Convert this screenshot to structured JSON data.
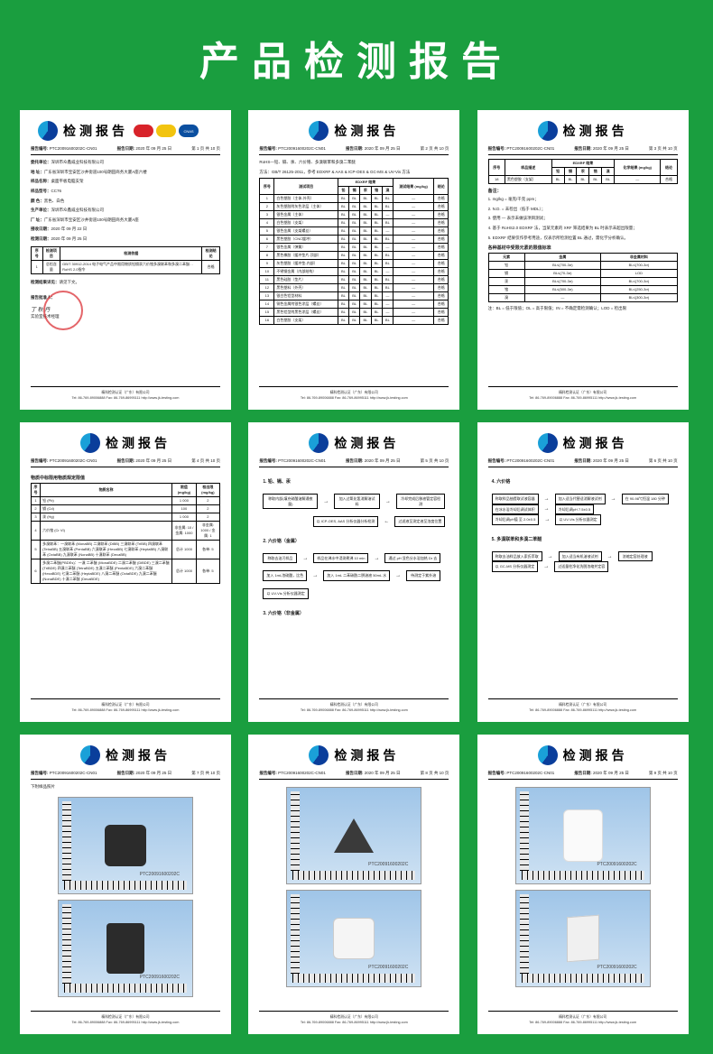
{
  "page_title": "产品检测报告",
  "report_title": "检测报告",
  "cnas_text": "CNAS",
  "report_no_label": "报告编号:",
  "report_no": "PTC20091600202C-CN01",
  "date_label": "报告日期:",
  "date": "2020 年 09 月 25 日",
  "pages": [
    "第 1 页  共 10 页",
    "第 2 页  共 10 页",
    "第 3 页  共 10 页",
    "第 4 页  共 10 页",
    "第 5 页  共 10 页",
    "第 6 页  共 10 页",
    "第 7 页  共 10 页",
    "第 8 页  共 10 页",
    "第 9 页  共 10 页"
  ],
  "footer_org": "精科检测认证（广东）有限公司",
  "footer_tel": "Tel: 86-769-89006888   Fax: 86-769-86995111   http://www.jk-testing.com",
  "card1": {
    "applicant_label": "委托单位：",
    "applicant": "深圳市众鑫威业科技有限公司",
    "addr_label": "地    址：",
    "addr": "广东省深圳市宝安区沙井街道100号朗田商务大厦A座六楼",
    "sample_label": "样品名称：",
    "sample": "桌面平板电脑支架",
    "model_label": "样品型号：",
    "model": "CC76",
    "color_label": "颜    色：",
    "color": "黑色、白色",
    "mfr_label": "生产单位：",
    "mfr": "深圳市众鑫威业科技有限公司",
    "mfr_addr_label": "厂    址：",
    "mfr_addr": "广东省深圳市宝安区沙井街道100号朗田商务大厦A座",
    "recv_label": "接收日期：",
    "recv": "2020 年 09 月 22 日",
    "test_label": "检测日期：",
    "test": "2020 年 09 月 25 日",
    "result_head": [
      "序号",
      "检测项目",
      "检测依据",
      "检测结论"
    ],
    "result_row": [
      "1",
      "总铅含量",
      "GB/T 30912-2014 电子电气产品中限用物质铅镉汞六价铬多溴联苯和多溴二苯醚…RoHS 2.0指令",
      "合格"
    ],
    "conclusion_label": "检测结果详见：",
    "conclusion": "请见下文。",
    "approve_label": "报告批准人：",
    "approve_title": "实验室技术经理"
  },
  "card2": {
    "desc1": "RoHS—铅、镉、汞、六价铬、多溴联苯和多溴二苯醚",
    "desc2": "方法：GB/T 26125-2011，参考 EDXRF & AAS & ICP-OES & GC-MS & UV-Vis 方法",
    "tbl_head": [
      "序号",
      "测试项目",
      "EDXRF 结果",
      "单位",
      "测试结果 (mg/kg)",
      "结论"
    ],
    "sub_head": [
      "铅",
      "镉",
      "汞",
      "铬",
      "溴"
    ],
    "rows": [
      [
        "1",
        "白色塑胶（主体-外壳）",
        "BL",
        "BL",
        "BL",
        "BL",
        "BL",
        "—",
        "合格"
      ],
      [
        "2",
        "灰色塑胶附灰色涂层（主体）",
        "BL",
        "BL",
        "BL",
        "BL",
        "BL",
        "—",
        "合格"
      ],
      [
        "3",
        "银色金属（主体）",
        "BL",
        "BL",
        "BL",
        "BL",
        "—",
        "—",
        "合格"
      ],
      [
        "4",
        "白色塑胶（支架）",
        "BL",
        "BL",
        "BL",
        "BL",
        "BL",
        "—",
        "合格"
      ],
      [
        "5",
        "银色金属（支架螺丝）",
        "BL",
        "BL",
        "BL",
        "BL",
        "—",
        "—",
        "合格"
      ],
      [
        "6",
        "黑色塑胶（CNC缓冲）",
        "BL",
        "BL",
        "BL",
        "BL",
        "BL",
        "—",
        "合格"
      ],
      [
        "7",
        "银色金属（弹簧）",
        "BL",
        "BL",
        "BL",
        "BL",
        "—",
        "—",
        "合格"
      ],
      [
        "8",
        "黑色橡胶（缓冲垫片-顶部）",
        "BL",
        "BL",
        "BL",
        "BL",
        "BL",
        "—",
        "合格"
      ],
      [
        "9",
        "灰色塑胶（缓冲垫-内部）",
        "BL",
        "BL",
        "BL",
        "BL",
        "BL",
        "—",
        "合格"
      ],
      [
        "10",
        "不锈钢金属（内部结构）",
        "BL",
        "BL",
        "BL",
        "BL",
        "—",
        "—",
        "合格"
      ],
      [
        "11",
        "黑色硅胶（垫片）",
        "BL",
        "BL",
        "BL",
        "BL",
        "BL",
        "—",
        "合格"
      ],
      [
        "12",
        "黑色塑料（外壳）",
        "BL",
        "BL",
        "BL",
        "BL",
        "BL",
        "—",
        "合格"
      ],
      [
        "13",
        "银白色铝型材料",
        "BL",
        "BL",
        "BL",
        "BL",
        "—",
        "—",
        "合格"
      ],
      [
        "14",
        "铜色金属附银色涂层（螺丝）",
        "BL",
        "BL",
        "BL",
        "BL",
        "—",
        "—",
        "合格"
      ],
      [
        "15",
        "黑色铝型附黑色涂层（螺丝）",
        "BL",
        "BL",
        "BL",
        "BL",
        "—",
        "—",
        "合格"
      ],
      [
        "16",
        "白色塑胶（支架）",
        "BL",
        "BL",
        "BL",
        "BL",
        "BL",
        "—",
        "合格"
      ]
    ]
  },
  "card3": {
    "tbl_head": [
      "序号",
      "样品描述",
      "EDXRF 结果",
      "RoHS2.0",
      "化学结果 (mg/kg)",
      "结论"
    ],
    "sub_head": [
      "铅",
      "镉",
      "汞",
      "铬",
      "溴"
    ],
    "row": [
      "18",
      "黑色塑胶（支架）",
      "BL",
      "BL",
      "BL",
      "BL",
      "BL",
      "—",
      "合格"
    ],
    "notes_label": "备注：",
    "notes": [
      "1. mg/kg = 毫克/千克 ppm；",
      "2. N.D. = 未检出（低于 MDL）；",
      "3. 使用 — 表示未做该项目测试；",
      "4. 基于 RoHS2.0 EDXRF 法，当某元素的 XRF 筛选结果为 BL 时表示未超出限量；",
      "5. EDXRF 结果仅作参考用途，仅表示所检测位置 BL 通过，需化学分析确认。"
    ],
    "limit_title": "各种基材中受限元素的限值标准",
    "limit_head": [
      "元素",
      "金属",
      "非金属材料"
    ],
    "limit_rows": [
      [
        "铅",
        "BL≤(700-3σ)<X<(1300+3σ)≤OL",
        "BL≤(700-3σ)<X<(1300+3σ)≤OL"
      ],
      [
        "镉",
        "BL≤(70-3σ)<X<(130+3σ)≤OL",
        "LOD<X<(150+3σ)≤OL"
      ],
      [
        "汞",
        "BL≤(700-3σ)<X<(1300+3σ)≤OL",
        "BL≤(700-3σ)<X<(1300+3σ)≤OL"
      ],
      [
        "铬",
        "BL≤(500-3σ)<X",
        "BL≤(250-3σ)<X"
      ],
      [
        "溴",
        "—",
        "BL≤(300-3σ)<X"
      ]
    ],
    "limit_note": "注：BL = 低于限值；OL = 高于限值；IN = 不确定需检测确认；LOD = 检出限"
  },
  "card4": {
    "subtitle": "物质中标限用物质规定限值",
    "head": [
      "序号",
      "物质名称",
      "限值 (mg/kg)",
      "检出限 (mg/kg)"
    ],
    "rows": [
      [
        "1",
        "铅 (Pb)",
        "1 000",
        "2"
      ],
      [
        "2",
        "镉 (Cd)",
        "100",
        "2"
      ],
      [
        "3",
        "汞 (Hg)",
        "1 000",
        "2"
      ],
      [
        "4",
        "六价铬 (Cr VI)",
        "非金属: 10 / 金属: 1000",
        "非金属: 1000 / 金属: 1"
      ],
      [
        "5",
        "多溴联苯：一溴联苯 (MonaBB) 二溴联苯 (DiBB) 三溴联苯 (TriBB) 四溴联苯 (TetraBB) 五溴联苯 (PentaBB) 六溴联苯 (HexaBB) 七溴联苯 (HeptaBB) 八溴联苯 (OctaBB) 九溴联苯 (NonaBB) 十溴联苯 (DecaBB)",
        "总计 1000",
        "各单: 5"
      ],
      [
        "6",
        "多溴二苯醚(PBDEs)：一溴 二苯醚 (MonaBDE) 二溴二苯醚 (DiBDE) 三溴二苯醚 (TriBDE) 四溴二苯醚 (TetraBDE) 五溴二苯醚 (PentaBDE) 六溴二苯醚 (HexaBDE) 七溴二苯醚 (HeptaBDE) 八溴二苯醚 (OctaBDE) 九溴二苯醚 (NonaBDE) 十溴二苯醚 (DecaBDE)",
        "总计 1000",
        "各单: 5"
      ]
    ]
  },
  "card5": {
    "sec1": "1. 铅、镉、汞",
    "f1": [
      "称取内部(填充硝酸溶解通夜量)",
      "加入过氧化氢消解溶试料",
      "冷却完成后移液管定容检测"
    ],
    "f1b": [
      "以 ICP-OES, AAS 分析仪器分析检测",
      "过滤液至测定液至浓度位置"
    ],
    "sec2": "2. 六价铬（金属）",
    "f2": [
      "称取去油污样品",
      "样品在沸水中浸测煮沸 10 min",
      "通过 pH 显色分水浴加热 Dr 去"
    ],
    "f2b": [
      "加入 1mL浓硫酸，比色",
      "加入 1mL 二苯碳酰二肼溶液 50mL 水",
      "待测定于紫外溶"
    ],
    "f2c": [
      "以 UV-Vis 分析仪器测定"
    ],
    "sec3": "3. 六价铬（非金属）"
  },
  "card6": {
    "sec": "4. 六价铬",
    "rows": [
      [
        "称取样品抽提取试液容器",
        "加入适当代替适消解液试剂",
        "在 90-98℃恒温 180 分钟"
      ],
      [
        "在冰水浴冷却后调试体积",
        "冷却后调pH 7.5±0.5",
        ""
      ],
      [
        "冷却后调pH值 至 2.0±0.5",
        "以 UV-Vis 分析仪器测定",
        ""
      ]
    ],
    "sec2": "5. 多溴联苯和多溴二苯醚",
    "rows2": [
      [
        "称取去油样品放入索氏萃取",
        "加入适当有机溶液试剂",
        "浓缩定容处理液"
      ],
      [
        "以 GC-MS 分析仪器测定",
        "过适量柱净化洗脱浓缩并定容",
        ""
      ]
    ]
  },
  "card7": {
    "caption": "下附样品照片",
    "wm": "PTC20091600202C"
  },
  "card8": {
    "wm": "PTC20091600202C"
  },
  "card9": {
    "wm": "PTC20091600202C"
  }
}
